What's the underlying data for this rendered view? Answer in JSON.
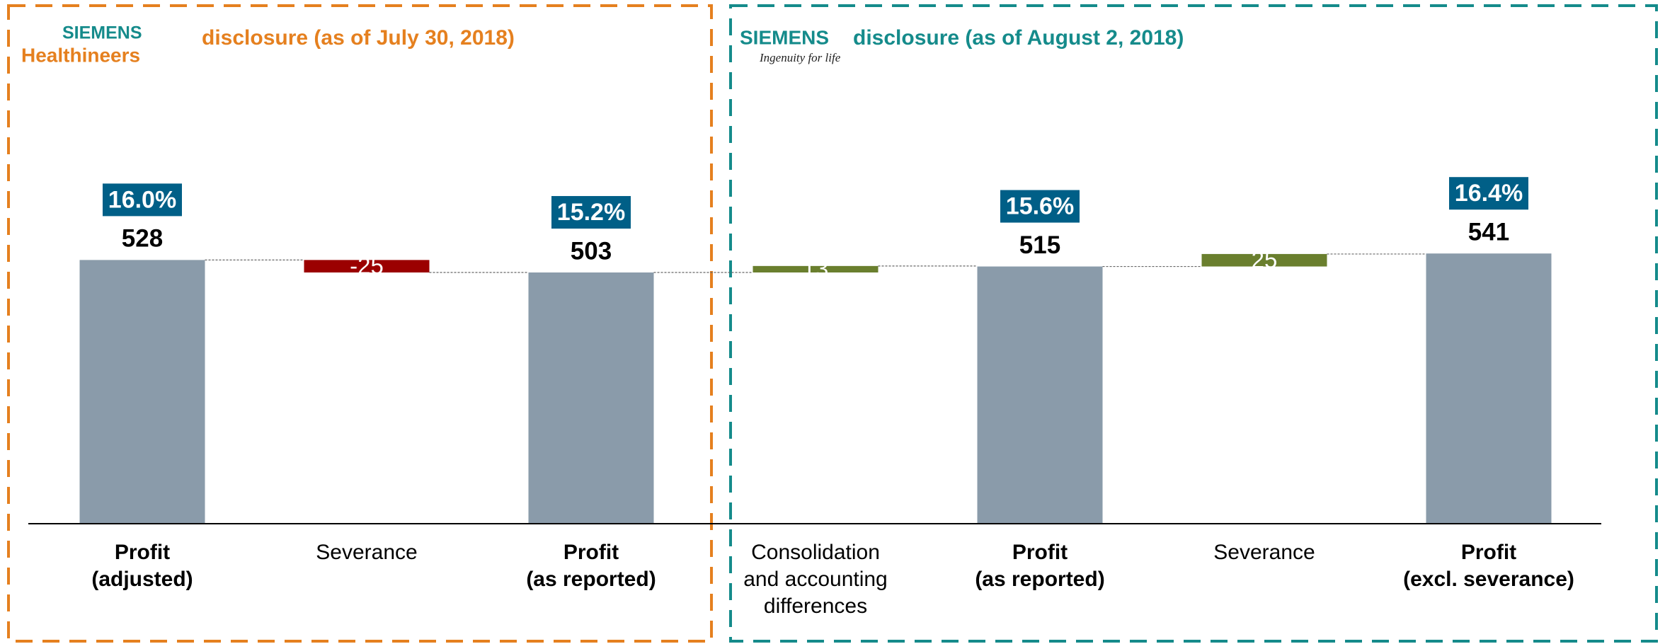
{
  "chart_data": {
    "type": "waterfall",
    "headers": [
      {
        "logo": "SIEMENS",
        "logo_sub": "Healthineers",
        "title": "disclosure (as of July 30, 2018)",
        "color": "#e5801f"
      },
      {
        "logo": "SIEMENS",
        "logo_sub": "Ingenuity for life",
        "title": "disclosure (as of August 2, 2018)",
        "color": "#158b8b"
      }
    ],
    "categories": [
      [
        "Profit",
        "(adjusted)"
      ],
      [
        "Severance"
      ],
      [
        "Profit",
        "(as reported)"
      ],
      [
        "Consolidation",
        "and accounting",
        "differences"
      ],
      [
        "Profit",
        "(as reported)"
      ],
      [
        "Severance"
      ],
      [
        "Profit",
        "(excl. severance)"
      ]
    ],
    "kinds": [
      "total",
      "delta",
      "total",
      "delta",
      "total",
      "delta",
      "total"
    ],
    "values": [
      528,
      -25,
      503,
      13,
      515,
      25,
      541
    ],
    "margin_labels": [
      "16.0%",
      null,
      "15.2%",
      null,
      "15.6%",
      null,
      "16.4%"
    ],
    "colors": {
      "total": "#8a9baa",
      "negative": "#9b0000",
      "positive": "#6a7f2e",
      "margin": "#005f87"
    },
    "ylim": [
      0,
      700
    ]
  }
}
